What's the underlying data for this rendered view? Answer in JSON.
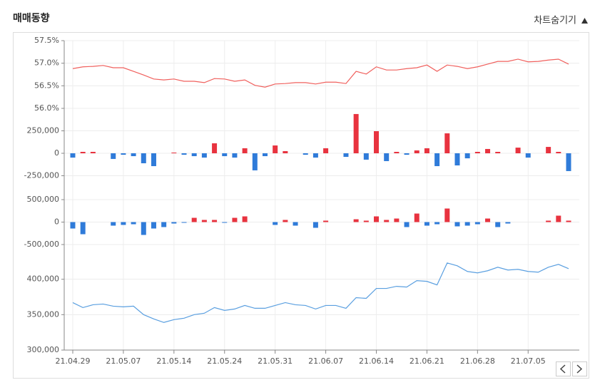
{
  "header": {
    "title": "매매동향",
    "toggle": "차트숨기기"
  },
  "chart_data": [
    {
      "type": "line",
      "color": "#f0605d",
      "ylim": [
        56.0,
        57.5
      ],
      "yticks": [
        {
          "value": 57.5,
          "label": "57.5%"
        },
        {
          "value": 57.0,
          "label": "57.0%"
        },
        {
          "value": 56.5,
          "label": "56.5%"
        },
        {
          "value": 56.0,
          "label": "56.0%"
        }
      ],
      "values": [
        56.88,
        56.92,
        56.93,
        56.95,
        56.9,
        56.9,
        56.82,
        56.74,
        56.65,
        56.63,
        56.65,
        56.6,
        56.6,
        56.57,
        56.66,
        56.65,
        56.6,
        56.63,
        56.51,
        56.47,
        56.54,
        56.55,
        56.57,
        56.57,
        56.54,
        56.58,
        56.58,
        56.55,
        56.82,
        56.76,
        56.92,
        56.85,
        56.85,
        56.88,
        56.9,
        56.96,
        56.82,
        56.96,
        56.93,
        56.88,
        56.92,
        56.98,
        57.04,
        57.04,
        57.09,
        57.03,
        57.04,
        57.07,
        57.09,
        56.98
      ]
    },
    {
      "type": "bar",
      "color": "#e8333f",
      "negative_color": "#2f7bd9",
      "ylim": [
        -500000,
        500000
      ],
      "yticks": [
        {
          "value": 250000,
          "label": "250,000"
        },
        0,
        {
          "value": -250000,
          "label": "-250,000"
        }
      ],
      "values": [
        -48000,
        16000,
        16000,
        0,
        -63000,
        -16000,
        -32000,
        -111000,
        -143000,
        0,
        8000,
        -16000,
        -32000,
        -48000,
        111000,
        -32000,
        -48000,
        56000,
        -190000,
        -32000,
        87000,
        24000,
        0,
        -16000,
        -48000,
        56000,
        0,
        -40000,
        437000,
        -71000,
        246000,
        -87000,
        16000,
        -16000,
        32000,
        56000,
        -143000,
        222000,
        -135000,
        -56000,
        16000,
        48000,
        16000,
        0,
        63000,
        -48000,
        0,
        71000,
        16000,
        -198000
      ]
    },
    {
      "type": "bar",
      "color": "#e8333f",
      "negative_color": "#2f7bd9",
      "ylim": [
        -500000,
        500000
      ],
      "yticks": [
        {
          "value": 500000,
          "label": "500,000"
        },
        0,
        {
          "value": -500000,
          "label": "-500,000"
        }
      ],
      "values": [
        -143000,
        -270000,
        0,
        0,
        -79000,
        -63000,
        -48000,
        -286000,
        -143000,
        -111000,
        -32000,
        -16000,
        95000,
        48000,
        48000,
        -16000,
        95000,
        127000,
        0,
        0,
        -63000,
        48000,
        -79000,
        0,
        -127000,
        32000,
        0,
        0,
        63000,
        32000,
        127000,
        48000,
        79000,
        -111000,
        190000,
        -79000,
        -48000,
        302000,
        -95000,
        -79000,
        -48000,
        79000,
        -111000,
        -32000,
        0,
        0,
        0,
        32000,
        143000,
        32000
      ]
    },
    {
      "type": "line",
      "color": "#5a9fe0",
      "ylim": [
        300000,
        450000
      ],
      "yticks": [
        {
          "value": 400000,
          "label": "400,000"
        },
        {
          "value": 350000,
          "label": "350,000"
        },
        {
          "value": 300000,
          "label": "300,000"
        }
      ],
      "categories": [
        "21.04.29",
        null,
        null,
        null,
        null,
        "21.05.07",
        null,
        null,
        null,
        null,
        "21.05.14",
        null,
        null,
        null,
        null,
        "21.05.24",
        null,
        null,
        null,
        null,
        "21.05.31",
        null,
        null,
        null,
        null,
        "21.06.07",
        null,
        null,
        null,
        null,
        "21.06.14",
        null,
        null,
        null,
        null,
        "21.06.21",
        null,
        null,
        null,
        null,
        "21.06.28",
        null,
        null,
        null,
        null,
        "21.07.05",
        null,
        null,
        null,
        null
      ],
      "values": [
        367000,
        360000,
        364000,
        365000,
        362000,
        361000,
        362000,
        350000,
        344000,
        339000,
        343000,
        345000,
        350000,
        352000,
        360000,
        356000,
        358000,
        363000,
        359000,
        359000,
        363000,
        367000,
        364000,
        363000,
        358000,
        363000,
        363000,
        359000,
        374000,
        373000,
        387000,
        387000,
        390000,
        389000,
        398000,
        397000,
        392000,
        423000,
        419000,
        411000,
        409000,
        412000,
        417000,
        413000,
        414000,
        411000,
        410000,
        417000,
        421000,
        415000
      ]
    }
  ]
}
